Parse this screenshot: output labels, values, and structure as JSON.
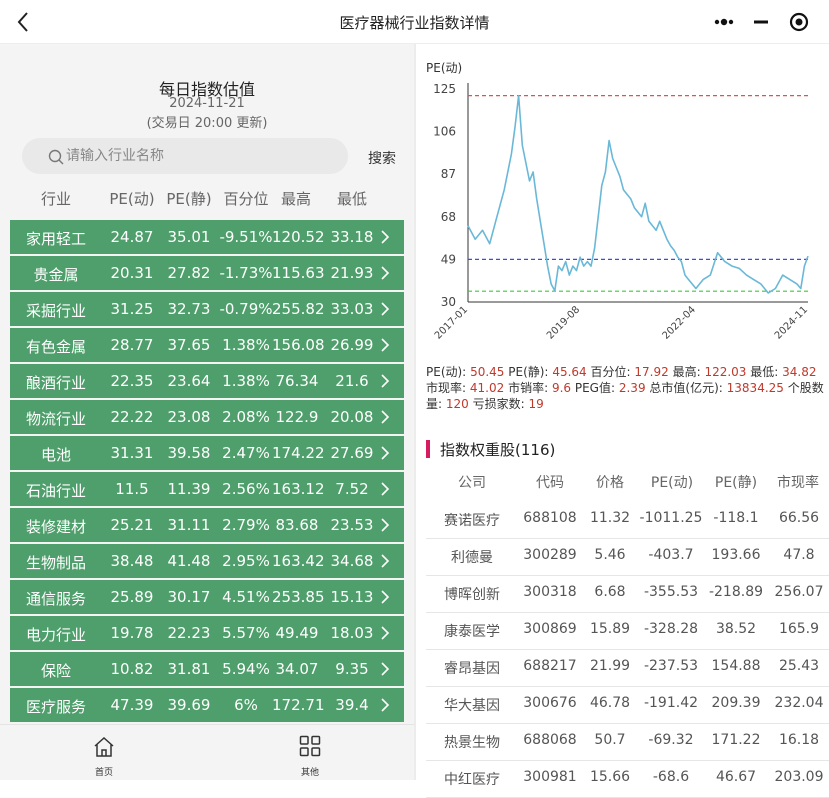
{
  "nav": {
    "title": "医疗器械行业指数详情"
  },
  "header": {
    "title": "每日指数估值",
    "date": "2024-11-21",
    "note": "(交易日 20:00 更新)"
  },
  "search": {
    "placeholder": "请输入行业名称",
    "button": "搜索"
  },
  "columns": [
    "行业",
    "PE(动)",
    "PE(静)",
    "百分位",
    "最高",
    "最低"
  ],
  "industries": [
    {
      "name": "家用轻工",
      "pe_dyn": "24.87",
      "pe_static": "35.01",
      "pct": "-9.51%",
      "high": "120.52",
      "low": "33.18"
    },
    {
      "name": "贵金属",
      "pe_dyn": "20.31",
      "pe_static": "27.82",
      "pct": "-1.73%",
      "high": "115.63",
      "low": "21.93"
    },
    {
      "name": "采掘行业",
      "pe_dyn": "31.25",
      "pe_static": "32.73",
      "pct": "-0.79%",
      "high": "255.82",
      "low": "33.03"
    },
    {
      "name": "有色金属",
      "pe_dyn": "28.77",
      "pe_static": "37.65",
      "pct": "1.38%",
      "high": "156.08",
      "low": "26.99"
    },
    {
      "name": "酿酒行业",
      "pe_dyn": "22.35",
      "pe_static": "23.64",
      "pct": "1.38%",
      "high": "76.34",
      "low": "21.6"
    },
    {
      "name": "物流行业",
      "pe_dyn": "22.22",
      "pe_static": "23.08",
      "pct": "2.08%",
      "high": "122.9",
      "low": "20.08"
    },
    {
      "name": "电池",
      "pe_dyn": "31.31",
      "pe_static": "39.58",
      "pct": "2.47%",
      "high": "174.22",
      "low": "27.69"
    },
    {
      "name": "石油行业",
      "pe_dyn": "11.5",
      "pe_static": "11.39",
      "pct": "2.56%",
      "high": "163.12",
      "low": "7.52"
    },
    {
      "name": "装修建材",
      "pe_dyn": "25.21",
      "pe_static": "31.11",
      "pct": "2.79%",
      "high": "83.68",
      "low": "23.53"
    },
    {
      "name": "生物制品",
      "pe_dyn": "38.48",
      "pe_static": "41.48",
      "pct": "2.95%",
      "high": "163.42",
      "low": "34.68"
    },
    {
      "name": "通信服务",
      "pe_dyn": "25.89",
      "pe_static": "30.17",
      "pct": "4.51%",
      "high": "253.85",
      "low": "15.13"
    },
    {
      "name": "电力行业",
      "pe_dyn": "19.78",
      "pe_static": "22.23",
      "pct": "5.57%",
      "high": "49.49",
      "low": "18.03"
    },
    {
      "name": "保险",
      "pe_dyn": "10.82",
      "pe_static": "31.81",
      "pct": "5.94%",
      "high": "34.07",
      "low": "9.35"
    },
    {
      "name": "医疗服务",
      "pe_dyn": "47.39",
      "pe_static": "39.69",
      "pct": "6%",
      "high": "172.71",
      "low": "39.4"
    }
  ],
  "tabbar": {
    "home": "首页",
    "other": "其他"
  },
  "chart_data": {
    "type": "line",
    "ylabel": "PE(动)",
    "yticks": [
      30,
      49,
      68,
      87,
      106,
      125
    ],
    "ylim": [
      30,
      125
    ],
    "x_ticks": [
      "2017-01",
      "2019-08",
      "2022-04",
      "2024-11"
    ],
    "reference_lines": [
      {
        "value": 122.03,
        "color": "#e05252",
        "style": "dashed"
      },
      {
        "value": 49,
        "color": "#3a4fd6",
        "style": "dashed"
      },
      {
        "value": 34.82,
        "color": "#3bcc3b",
        "style": "dashed"
      }
    ],
    "series": [
      {
        "color": "#6ab8d8",
        "points": [
          [
            "2017-01",
            64
          ],
          [
            "2017-03",
            58
          ],
          [
            "2017-05",
            62
          ],
          [
            "2017-07",
            56
          ],
          [
            "2017-09",
            68
          ],
          [
            "2017-11",
            80
          ],
          [
            "2018-01",
            96
          ],
          [
            "2018-02",
            108
          ],
          [
            "2018-03",
            122
          ],
          [
            "2018-04",
            100
          ],
          [
            "2018-05",
            92
          ],
          [
            "2018-06",
            84
          ],
          [
            "2018-07",
            88
          ],
          [
            "2018-08",
            76
          ],
          [
            "2018-09",
            66
          ],
          [
            "2018-10",
            56
          ],
          [
            "2018-11",
            46
          ],
          [
            "2018-12",
            38
          ],
          [
            "2019-01",
            35
          ],
          [
            "2019-02",
            46
          ],
          [
            "2019-03",
            44
          ],
          [
            "2019-04",
            48
          ],
          [
            "2019-05",
            42
          ],
          [
            "2019-06",
            46
          ],
          [
            "2019-07",
            44
          ],
          [
            "2019-08",
            50
          ],
          [
            "2019-09",
            46
          ],
          [
            "2019-10",
            48
          ],
          [
            "2019-11",
            46
          ],
          [
            "2019-12",
            54
          ],
          [
            "2020-01",
            68
          ],
          [
            "2020-02",
            82
          ],
          [
            "2020-03",
            88
          ],
          [
            "2020-04",
            102
          ],
          [
            "2020-05",
            94
          ],
          [
            "2020-06",
            90
          ],
          [
            "2020-07",
            86
          ],
          [
            "2020-08",
            80
          ],
          [
            "2020-09",
            78
          ],
          [
            "2020-10",
            76
          ],
          [
            "2020-11",
            72
          ],
          [
            "2020-12",
            70
          ],
          [
            "2021-01",
            68
          ],
          [
            "2021-02",
            74
          ],
          [
            "2021-03",
            66
          ],
          [
            "2021-04",
            64
          ],
          [
            "2021-05",
            62
          ],
          [
            "2021-06",
            66
          ],
          [
            "2021-07",
            62
          ],
          [
            "2021-08",
            58
          ],
          [
            "2021-09",
            55
          ],
          [
            "2021-10",
            53
          ],
          [
            "2021-11",
            50
          ],
          [
            "2021-12",
            48
          ],
          [
            "2022-01",
            42
          ],
          [
            "2022-02",
            40
          ],
          [
            "2022-03",
            38
          ],
          [
            "2022-04",
            36
          ],
          [
            "2022-06",
            40
          ],
          [
            "2022-08",
            42
          ],
          [
            "2022-10",
            52
          ],
          [
            "2022-12",
            48
          ],
          [
            "2023-02",
            46
          ],
          [
            "2023-04",
            45
          ],
          [
            "2023-06",
            42
          ],
          [
            "2023-08",
            40
          ],
          [
            "2023-10",
            38
          ],
          [
            "2023-12",
            34
          ],
          [
            "2024-02",
            36
          ],
          [
            "2024-04",
            42
          ],
          [
            "2024-06",
            40
          ],
          [
            "2024-08",
            38
          ],
          [
            "2024-09",
            36
          ],
          [
            "2024-10",
            46
          ],
          [
            "2024-11",
            50.45
          ]
        ]
      }
    ]
  },
  "stats": {
    "pe_dyn_label": "PE(动):",
    "pe_dyn": "50.45",
    "pe_static_label": "PE(静):",
    "pe_static": "45.64",
    "pct_label": "百分位:",
    "pct": "17.92",
    "high_label": "最高:",
    "high": "122.03",
    "low_label": "最低:",
    "low": "34.82",
    "pb_label": "市现率:",
    "pb": "41.02",
    "ps_label": "市销率:",
    "ps": "9.6",
    "peg_label": "PEG值:",
    "peg": "2.39",
    "mcap_label": "总市值(亿元):",
    "mcap": "13834.25",
    "count_label": "个股数量:",
    "count": "120",
    "loss_label": "亏损家数:",
    "loss": "19"
  },
  "weights": {
    "title": "指数权重股",
    "count": "(116)",
    "columns": [
      "公司",
      "代码",
      "价格",
      "PE(动)",
      "PE(静)",
      "市现率"
    ],
    "rows": [
      [
        "赛诺医疗",
        "688108",
        "11.32",
        "-1011.25",
        "-118.1",
        "66.56"
      ],
      [
        "利德曼",
        "300289",
        "5.46",
        "-403.7",
        "193.66",
        "47.8"
      ],
      [
        "博晖创新",
        "300318",
        "6.68",
        "-355.53",
        "-218.89",
        "256.07"
      ],
      [
        "康泰医学",
        "300869",
        "15.89",
        "-328.28",
        "38.52",
        "165.9"
      ],
      [
        "睿昂基因",
        "688217",
        "21.99",
        "-237.53",
        "154.88",
        "25.43"
      ],
      [
        "华大基因",
        "300676",
        "46.78",
        "-191.42",
        "209.39",
        "232.04"
      ],
      [
        "热景生物",
        "688068",
        "50.7",
        "-69.32",
        "171.22",
        "16.18"
      ],
      [
        "中红医疗",
        "300981",
        "15.66",
        "-68.6",
        "46.67",
        "203.09"
      ]
    ]
  }
}
